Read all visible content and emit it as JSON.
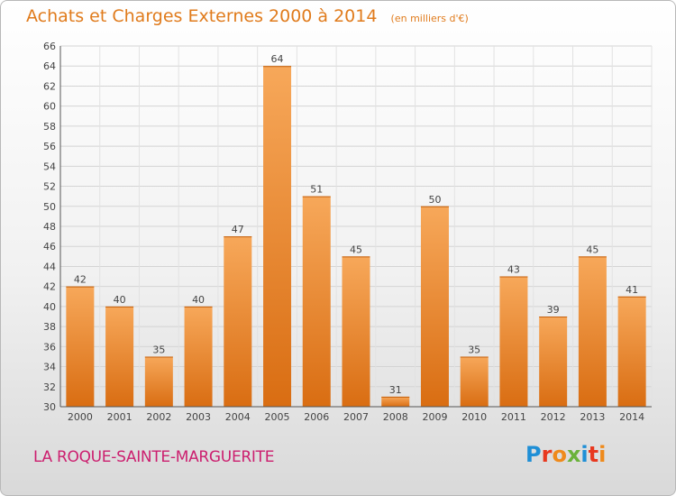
{
  "header": {
    "title": "Achats et Charges Externes 2000 à 2014",
    "unit_note": "(en milliers d'€)"
  },
  "footer": {
    "place_name": "LA ROQUE-SAINTE-MARGUERITE",
    "logo_text": "Proxiti",
    "logo_colors": [
      "#1f8fd6",
      "#e8381f",
      "#ef8a1b",
      "#6ab23a",
      "#1f8fd6",
      "#e8381f",
      "#ef8a1b"
    ]
  },
  "colors": {
    "bar_top": "#f7a85a",
    "bar_bottom": "#d96d12",
    "title": "#e07b1c",
    "place": "#cc1f6f"
  },
  "chart_data": {
    "type": "bar",
    "categories": [
      "2000",
      "2001",
      "2002",
      "2003",
      "2004",
      "2005",
      "2006",
      "2007",
      "2008",
      "2009",
      "2010",
      "2011",
      "2012",
      "2013",
      "2014"
    ],
    "values": [
      42,
      40,
      35,
      40,
      47,
      64,
      51,
      45,
      31,
      50,
      35,
      43,
      39,
      45,
      41
    ],
    "title": "Achats et Charges Externes 2000 à 2014",
    "ylim": [
      30,
      66
    ],
    "yticks": [
      30,
      32,
      34,
      36,
      38,
      40,
      42,
      44,
      46,
      48,
      50,
      52,
      54,
      56,
      58,
      60,
      62,
      64,
      66
    ],
    "grid": true,
    "data_labels": true
  }
}
